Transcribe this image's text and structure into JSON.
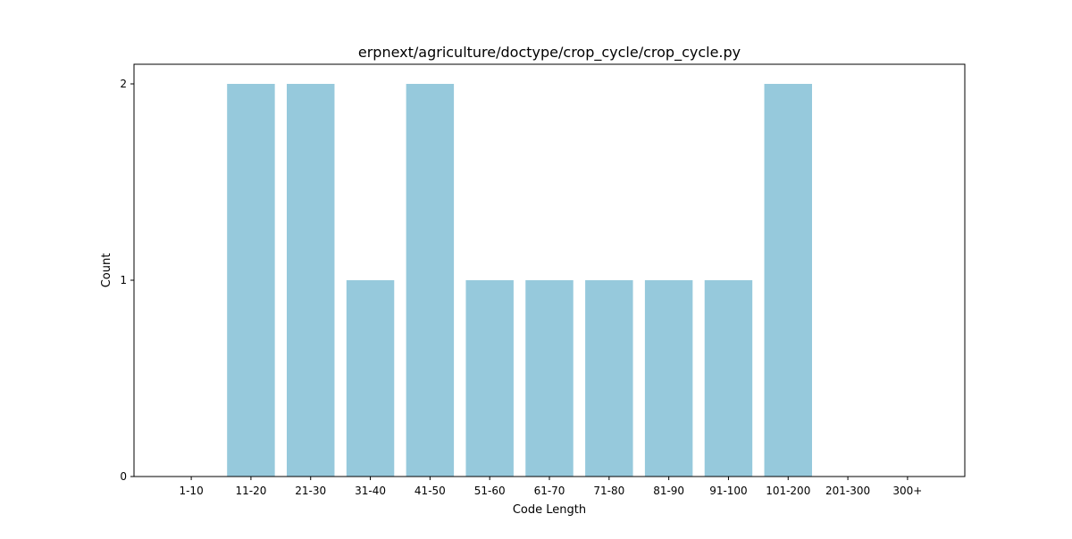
{
  "chart_data": {
    "type": "bar",
    "title": "erpnext/agriculture/doctype/crop_cycle/crop_cycle.py",
    "xlabel": "Code Length",
    "ylabel": "Count",
    "categories": [
      "1-10",
      "11-20",
      "21-30",
      "31-40",
      "41-50",
      "51-60",
      "61-70",
      "71-80",
      "81-90",
      "91-100",
      "101-200",
      "201-300",
      "300+"
    ],
    "values": [
      0,
      2,
      2,
      1,
      2,
      1,
      1,
      1,
      1,
      1,
      2,
      0,
      0
    ],
    "ylim": [
      0,
      2.1
    ],
    "yticks": [
      0,
      1,
      2
    ],
    "grid": false,
    "bar_color": "#96c9dc"
  }
}
